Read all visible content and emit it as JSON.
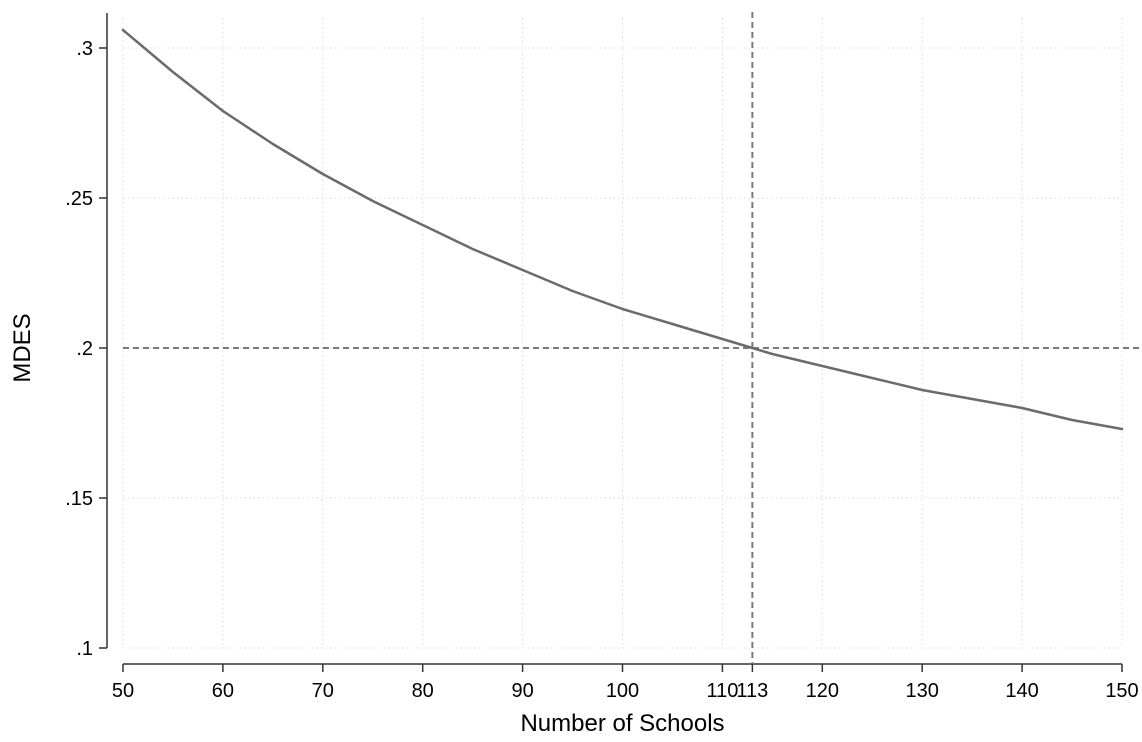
{
  "chart_data": {
    "type": "line",
    "xlabel": "Number of Schools",
    "ylabel": "MDES",
    "xlim": [
      50,
      150
    ],
    "ylim": [
      0.1,
      0.3
    ],
    "x_ticks": [
      {
        "value": 50,
        "label": "50"
      },
      {
        "value": 60,
        "label": "60"
      },
      {
        "value": 70,
        "label": "70"
      },
      {
        "value": 80,
        "label": "80"
      },
      {
        "value": 90,
        "label": "90"
      },
      {
        "value": 100,
        "label": "100"
      },
      {
        "value": 110,
        "label": "110"
      },
      {
        "value": 113,
        "label": "113"
      },
      {
        "value": 120,
        "label": "120"
      },
      {
        "value": 130,
        "label": "130"
      },
      {
        "value": 140,
        "label": "140"
      },
      {
        "value": 150,
        "label": "150"
      }
    ],
    "y_ticks": [
      {
        "value": 0.1,
        "label": ".1"
      },
      {
        "value": 0.15,
        "label": ".15"
      },
      {
        "value": 0.2,
        "label": ".2"
      },
      {
        "value": 0.25,
        "label": ".25"
      },
      {
        "value": 0.3,
        "label": ".3"
      }
    ],
    "grid": true,
    "series": [
      {
        "color": "#6b6b6b",
        "x": [
          50,
          55,
          60,
          65,
          70,
          75,
          80,
          85,
          90,
          95,
          100,
          105,
          110,
          113,
          115,
          120,
          125,
          130,
          135,
          140,
          145,
          150
        ],
        "y": [
          0.306,
          0.292,
          0.279,
          0.268,
          0.258,
          0.249,
          0.241,
          0.233,
          0.226,
          0.219,
          0.213,
          0.208,
          0.203,
          0.2,
          0.198,
          0.194,
          0.19,
          0.186,
          0.183,
          0.18,
          0.176,
          0.173
        ]
      }
    ],
    "reference_lines": [
      {
        "orientation": "vertical",
        "value": 113,
        "style": "dashed",
        "color": "#7a7a7a"
      },
      {
        "orientation": "horizontal",
        "value": 0.2,
        "style": "dashed",
        "color": "#7a7a7a"
      }
    ]
  }
}
